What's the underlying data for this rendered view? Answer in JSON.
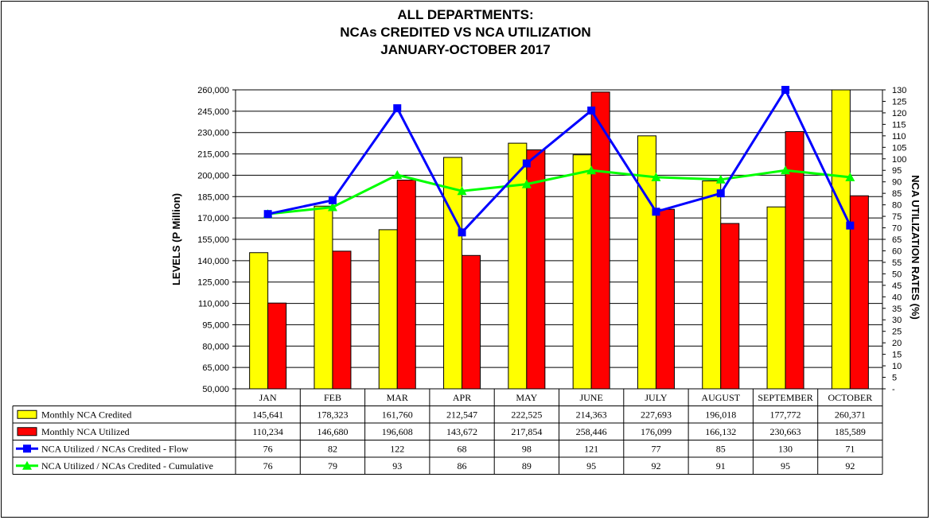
{
  "chart_data": {
    "type": "bar",
    "title": [
      "ALL DEPARTMENTS:",
      "NCAs CREDITED VS NCA UTILIZATION",
      "JANUARY-OCTOBER 2017"
    ],
    "ylabel": "LEVELS (P Million)",
    "y2label": "NCA UTILIZATION RATES (%)",
    "ylim": [
      50000,
      260000
    ],
    "yticks": [
      "50,000",
      "65,000",
      "80,000",
      "95,000",
      "110,000",
      "125,000",
      "140,000",
      "155,000",
      "170,000",
      "185,000",
      "200,000",
      "215,000",
      "230,000",
      "245,000",
      "260,000"
    ],
    "y2lim": [
      0,
      130
    ],
    "y2ticks": [
      "-",
      "5",
      "10",
      "15",
      "20",
      "25",
      "30",
      "35",
      "40",
      "45",
      "50",
      "55",
      "60",
      "65",
      "70",
      "75",
      "80",
      "85",
      "90",
      "95",
      "100",
      "105",
      "110",
      "115",
      "120",
      "125",
      "130"
    ],
    "grid": "horizontal",
    "legend_placement": "data-table",
    "categories": [
      "JAN",
      "FEB",
      "MAR",
      "APR",
      "MAY",
      "JUNE",
      "JULY",
      "AUGUST",
      "SEPTEMBER",
      "OCTOBER"
    ],
    "series": [
      {
        "name": "Monthly NCA Credited",
        "kind": "bar",
        "axis": "left",
        "color": "#ffff00",
        "values": [
          145641,
          178323,
          161760,
          212547,
          222525,
          214363,
          227693,
          196018,
          177772,
          260371
        ],
        "labels": [
          "145,641",
          "178,323",
          "161,760",
          "212,547",
          "222,525",
          "214,363",
          "227,693",
          "196,018",
          "177,772",
          "260,371"
        ]
      },
      {
        "name": "Monthly NCA Utilized",
        "kind": "bar",
        "axis": "left",
        "color": "#ff0000",
        "values": [
          110234,
          146680,
          196608,
          143672,
          217854,
          258446,
          176099,
          166132,
          230663,
          185589
        ],
        "labels": [
          "110,234",
          "146,680",
          "196,608",
          "143,672",
          "217,854",
          "258,446",
          "176,099",
          "166,132",
          "230,663",
          "185,589"
        ]
      },
      {
        "name": "NCA Utilized / NCAs Credited  - Flow",
        "kind": "line",
        "axis": "right",
        "color": "#0000ff",
        "marker": "square",
        "values": [
          76,
          82,
          122,
          68,
          98,
          121,
          77,
          85,
          130,
          71
        ],
        "labels": [
          "76",
          "82",
          "122",
          "68",
          "98",
          "121",
          "77",
          "85",
          "130",
          "71"
        ]
      },
      {
        "name": "NCA Utilized / NCAs Credited  - Cumulative",
        "kind": "line",
        "axis": "right",
        "color": "#00ff00",
        "marker": "triangle",
        "values": [
          76,
          79,
          93,
          86,
          89,
          95,
          92,
          91,
          95,
          92
        ],
        "labels": [
          "76",
          "79",
          "93",
          "86",
          "89",
          "95",
          "92",
          "91",
          "95",
          "92"
        ]
      }
    ]
  }
}
